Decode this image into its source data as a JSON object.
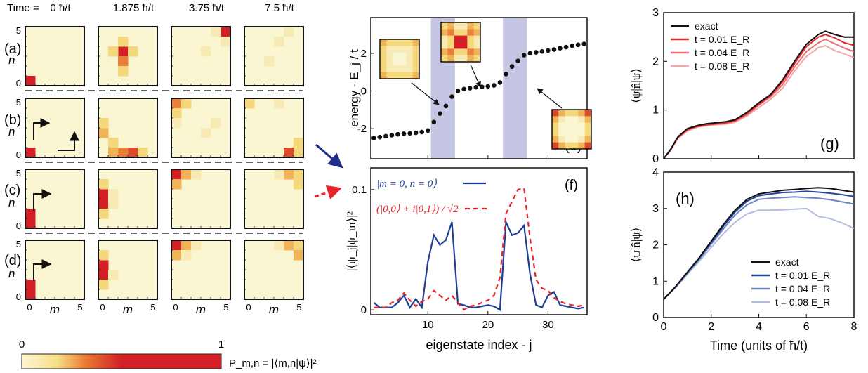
{
  "time_header": {
    "prefix": "Time =",
    "times": [
      "0 ħ/t",
      "1.875 ħ/t",
      "3.75 ħ/t",
      "7.5 ħ/t"
    ]
  },
  "heatmap_grid": {
    "row_labels": [
      "(a)",
      "(b)",
      "(c)",
      "(d)"
    ],
    "n_axis_label": "n",
    "m_axis_label": "m",
    "y_ticks": [
      "5",
      "0"
    ],
    "x_ticks": [
      "0",
      "5"
    ],
    "colorbar": {
      "min": "0",
      "max": "1",
      "label": "P_m,n = |⟨m,n|ψ⟩|²"
    },
    "colors": {
      "low": "#fbf6d2",
      "mid": "#f2a13b",
      "high": "#d41f26"
    }
  },
  "chart_data": [
    {
      "id": "e",
      "type": "scatter",
      "panel_label": "(e)",
      "xlabel": "eigenstate index - j",
      "ylabel": "energy - E_j / t",
      "xlim": [
        0.5,
        36.5
      ],
      "ylim": [
        -3.6,
        3.9
      ],
      "yticks": [
        -2,
        0,
        2
      ],
      "shaded_bands": [
        [
          10.5,
          14.5
        ],
        [
          22.5,
          26.5
        ]
      ],
      "shade_color": "#c4c6e3",
      "x": [
        1,
        2,
        3,
        4,
        5,
        6,
        7,
        8,
        9,
        10,
        11,
        12,
        13,
        14,
        15,
        16,
        17,
        18,
        19,
        20,
        21,
        22,
        23,
        24,
        25,
        26,
        27,
        28,
        29,
        30,
        31,
        32,
        33,
        34,
        35,
        36
      ],
      "y": [
        -2.5,
        -2.45,
        -2.4,
        -2.35,
        -2.3,
        -2.27,
        -2.25,
        -2.22,
        -2.18,
        -2.1,
        -1.65,
        -1.2,
        -0.8,
        -0.3,
        0.0,
        0.1,
        0.15,
        0.2,
        0.22,
        0.25,
        0.3,
        0.45,
        0.9,
        1.3,
        1.6,
        1.9,
        2.0,
        2.05,
        2.1,
        2.15,
        2.2,
        2.27,
        2.33,
        2.4,
        2.45,
        2.5
      ]
    },
    {
      "id": "f",
      "type": "line",
      "panel_label": "(f)",
      "xlabel": "eigenstate index - j",
      "ylabel": "|⟨ψ_j|ψ_in⟩|²",
      "xlim": [
        0.5,
        36.5
      ],
      "ylim": [
        -0.004,
        0.118
      ],
      "xticks": [
        10,
        20,
        30
      ],
      "yticks": [
        0,
        0.1
      ],
      "ytick_labels": [
        "0",
        "0.1"
      ],
      "x": [
        1,
        2,
        3,
        4,
        5,
        6,
        7,
        8,
        9,
        10,
        11,
        12,
        13,
        14,
        15,
        16,
        17,
        18,
        19,
        20,
        21,
        22,
        23,
        24,
        25,
        26,
        27,
        28,
        29,
        30,
        31,
        32,
        33,
        34,
        35,
        36
      ],
      "series": [
        {
          "name": "|m = 0, n = 0⟩",
          "color": "#1f3e99",
          "dash": false,
          "values": [
            0.006,
            0.002,
            0.002,
            0.002,
            0.006,
            0.012,
            0.002,
            0.009,
            0.002,
            0.04,
            0.062,
            0.054,
            0.058,
            0.073,
            0.005,
            0.004,
            0.002,
            0.002,
            0.003,
            0.004,
            0.003,
            0.0,
            0.073,
            0.062,
            0.064,
            0.07,
            0.03,
            0.004,
            0.002,
            0.012,
            0.015,
            0.004,
            0.003,
            0.002,
            0.001,
            0.002
          ]
        },
        {
          "name": "(|0,0⟩ + i|0,1⟩) / √2",
          "color": "#e8232a",
          "dash": true,
          "values": [
            0.002,
            0.002,
            0.002,
            0.006,
            0.008,
            0.014,
            0.008,
            0.003,
            0.007,
            0.009,
            0.016,
            0.012,
            0.008,
            0.012,
            0.006,
            0.0,
            0.003,
            0.004,
            0.006,
            0.008,
            0.012,
            0.027,
            0.08,
            0.09,
            0.1,
            0.101,
            0.06,
            0.025,
            0.018,
            0.016,
            0.01,
            0.007,
            0.005,
            0.004,
            0.003,
            0.004
          ]
        }
      ]
    },
    {
      "id": "g",
      "type": "line",
      "panel_label": "(g)",
      "ylabel": "⟨ψ|n̂|ψ⟩",
      "xlim": [
        0,
        8
      ],
      "ylim": [
        0,
        3
      ],
      "yticks": [
        0,
        1,
        2,
        3
      ],
      "x": [
        0,
        0.3,
        0.6,
        1.0,
        1.4,
        1.8,
        2.2,
        2.6,
        3.0,
        3.5,
        4.0,
        4.5,
        5.0,
        5.5,
        6.0,
        6.5,
        6.8,
        7.2,
        7.6,
        8.0
      ],
      "series": [
        {
          "name": "exact",
          "color": "#111111",
          "values": [
            0,
            0.2,
            0.45,
            0.62,
            0.68,
            0.72,
            0.74,
            0.76,
            0.8,
            0.95,
            1.15,
            1.32,
            1.62,
            2.0,
            2.35,
            2.55,
            2.62,
            2.55,
            2.5,
            2.5
          ]
        },
        {
          "name": "t = 0.01 E_R",
          "color": "#e32a2e",
          "values": [
            0,
            0.19,
            0.44,
            0.6,
            0.66,
            0.7,
            0.72,
            0.74,
            0.78,
            0.93,
            1.12,
            1.3,
            1.58,
            1.95,
            2.3,
            2.5,
            2.55,
            2.48,
            2.38,
            2.33
          ]
        },
        {
          "name": "t = 0.04 E_R",
          "color": "#ec6f72",
          "values": [
            0,
            0.19,
            0.43,
            0.59,
            0.66,
            0.69,
            0.71,
            0.73,
            0.77,
            0.9,
            1.1,
            1.27,
            1.52,
            1.88,
            2.2,
            2.38,
            2.45,
            2.36,
            2.27,
            2.2
          ]
        },
        {
          "name": "t = 0.08 E_R",
          "color": "#f3a9aa",
          "values": [
            0,
            0.18,
            0.42,
            0.57,
            0.65,
            0.68,
            0.7,
            0.71,
            0.75,
            0.88,
            1.05,
            1.22,
            1.45,
            1.8,
            2.1,
            2.28,
            2.32,
            2.22,
            2.15,
            2.08
          ]
        }
      ]
    },
    {
      "id": "h",
      "type": "line",
      "panel_label": "(h)",
      "xlabel": "Time (units of ħ/t)",
      "ylabel": "⟨ψ|n̂|ψ⟩",
      "xlim": [
        0,
        8
      ],
      "ylim": [
        0,
        4
      ],
      "xticks": [
        0,
        2,
        4,
        6,
        8
      ],
      "yticks": [
        0,
        1,
        2,
        3,
        4
      ],
      "x": [
        0,
        0.5,
        1.0,
        1.5,
        2.0,
        2.5,
        3.0,
        3.5,
        4.0,
        4.5,
        5.0,
        5.5,
        6.0,
        6.5,
        7.0,
        7.5,
        8.0
      ],
      "series": [
        {
          "name": "exact",
          "color": "#111111",
          "values": [
            0.5,
            0.85,
            1.25,
            1.65,
            2.1,
            2.55,
            2.95,
            3.25,
            3.4,
            3.45,
            3.5,
            3.52,
            3.55,
            3.57,
            3.55,
            3.5,
            3.45
          ]
        },
        {
          "name": "t = 0.01 E_R",
          "color": "#25449b",
          "values": [
            0.5,
            0.84,
            1.24,
            1.63,
            2.07,
            2.5,
            2.9,
            3.2,
            3.35,
            3.4,
            3.44,
            3.45,
            3.47,
            3.45,
            3.42,
            3.38,
            3.33
          ]
        },
        {
          "name": "t = 0.04 E_R",
          "color": "#6f85c1",
          "values": [
            0.5,
            0.83,
            1.22,
            1.6,
            2.02,
            2.43,
            2.82,
            3.1,
            3.25,
            3.28,
            3.3,
            3.32,
            3.3,
            3.28,
            3.24,
            3.18,
            3.12
          ]
        },
        {
          "name": "t = 0.08 E_R",
          "color": "#b2bfe0",
          "values": [
            0.5,
            0.82,
            1.19,
            1.55,
            1.93,
            2.3,
            2.62,
            2.85,
            2.95,
            2.95,
            2.96,
            2.98,
            3.0,
            2.78,
            2.72,
            2.6,
            2.45
          ]
        }
      ]
    }
  ]
}
